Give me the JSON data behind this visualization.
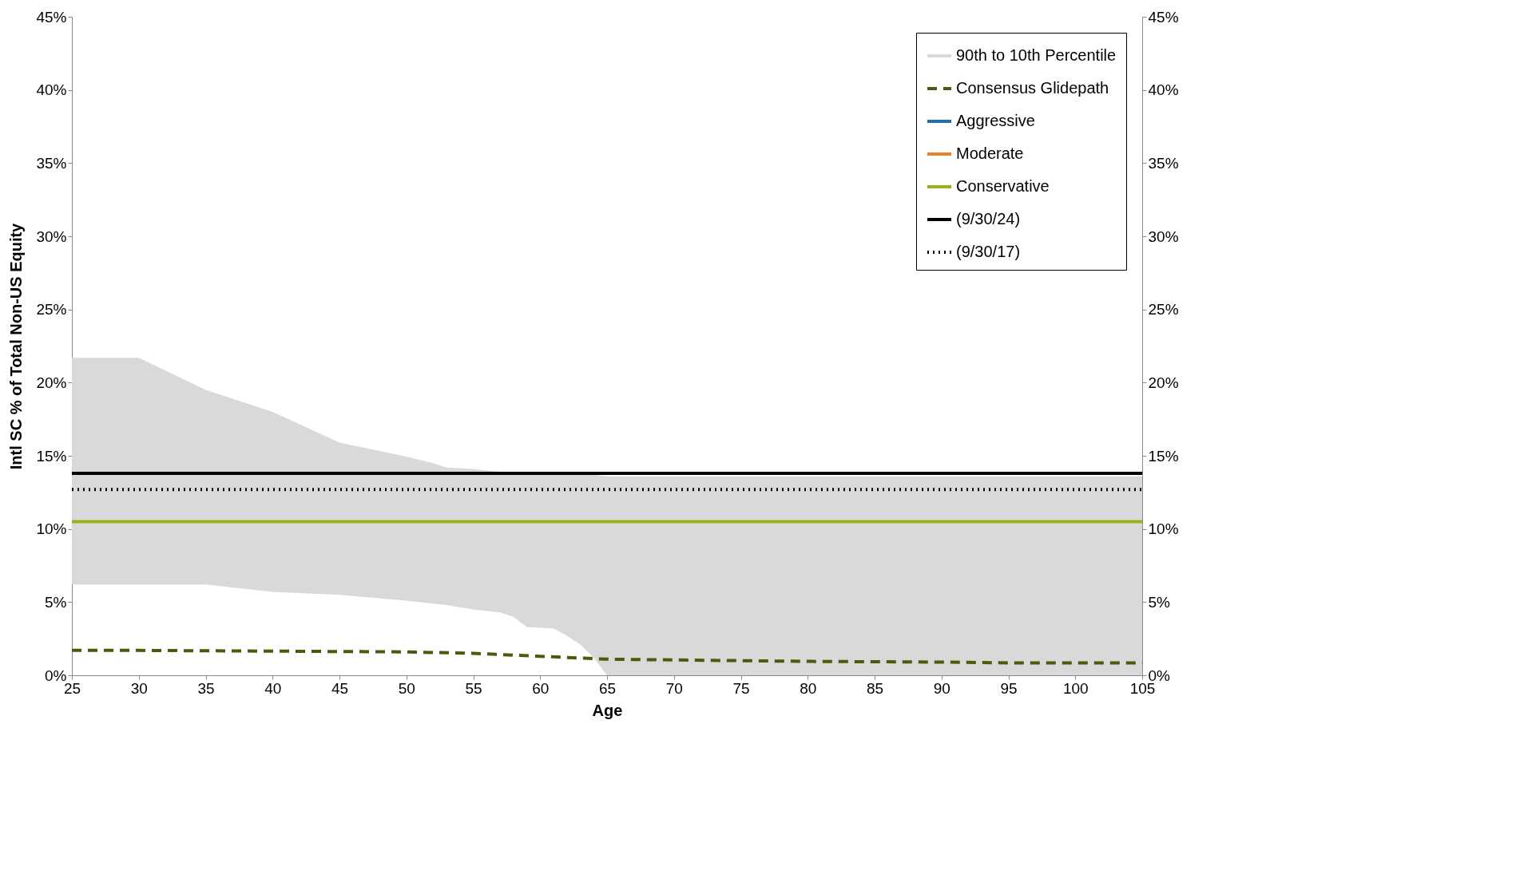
{
  "chart_data": {
    "type": "line",
    "xlabel": "Age",
    "ylabel": "Intl SC % of Total Non-US Equity",
    "xlim": [
      25,
      105
    ],
    "xticks": [
      25,
      30,
      35,
      40,
      45,
      50,
      55,
      60,
      65,
      70,
      75,
      80,
      85,
      90,
      95,
      100,
      105
    ],
    "ylim": [
      0,
      45
    ],
    "yticks": [
      {
        "value": 0,
        "label": "0%"
      },
      {
        "value": 5,
        "label": "5%"
      },
      {
        "value": 10,
        "label": "10%"
      },
      {
        "value": 15,
        "label": "15%"
      },
      {
        "value": 20,
        "label": "20%"
      },
      {
        "value": 25,
        "label": "25%"
      },
      {
        "value": 30,
        "label": "30%"
      },
      {
        "value": 35,
        "label": "35%"
      },
      {
        "value": 40,
        "label": "40%"
      },
      {
        "value": 45,
        "label": "45%"
      }
    ],
    "y2lim": [
      0,
      45
    ],
    "y2ticks": [
      {
        "value": 0,
        "label": "0%"
      },
      {
        "value": 5,
        "label": "5%"
      },
      {
        "value": 10,
        "label": "10%"
      },
      {
        "value": 15,
        "label": "15%"
      },
      {
        "value": 20,
        "label": "20%"
      },
      {
        "value": 25,
        "label": "25%"
      },
      {
        "value": 30,
        "label": "30%"
      },
      {
        "value": 35,
        "label": "35%"
      },
      {
        "value": 40,
        "label": "40%"
      },
      {
        "value": 45,
        "label": "45%"
      }
    ],
    "grid": false,
    "legend": "top right",
    "marker": "none",
    "series": [
      {
        "name": "90th to 10th Percentile",
        "type": "area",
        "color": "#d9d9d9",
        "x": [
          25,
          30,
          35,
          40,
          45,
          50,
          52,
          53,
          55,
          57,
          58,
          59,
          61,
          62,
          63,
          64,
          65,
          70,
          80,
          90,
          100,
          105
        ],
        "values": [
          null,
          null,
          null,
          null,
          null,
          null,
          null,
          null,
          null,
          null,
          null,
          null,
          null,
          null,
          null,
          null,
          null,
          null,
          null,
          null,
          null,
          null
        ],
        "upper": [
          21.7,
          21.7,
          19.5,
          18.0,
          15.9,
          14.95,
          14.5,
          14.2,
          14.1,
          13.9,
          13.8,
          13.7,
          13.7,
          13.7,
          13.7,
          13.7,
          13.6,
          13.6,
          13.6,
          13.6,
          13.6,
          13.6
        ],
        "lower": [
          6.2,
          6.2,
          6.2,
          5.7,
          5.5,
          5.1,
          4.9,
          4.8,
          4.5,
          4.3,
          4.0,
          3.3,
          3.2,
          2.7,
          2.1,
          1.2,
          0,
          0,
          0,
          0,
          0,
          0
        ]
      },
      {
        "name": "Consensus Glidepath",
        "color": "#4b5a0c",
        "line_style": "dashed",
        "x": [
          25,
          30,
          40,
          50,
          55,
          60,
          65,
          70,
          75,
          80,
          90,
          95,
          105
        ],
        "values": [
          1.7,
          1.7,
          1.65,
          1.6,
          1.5,
          1.3,
          1.1,
          1.05,
          1.0,
          0.95,
          0.9,
          0.85,
          0.85
        ]
      },
      {
        "name": "Aggressive",
        "color": "#1f6fa8",
        "line_style": "solid"
      },
      {
        "name": "Moderate",
        "color": "#e8822b",
        "line_style": "solid"
      },
      {
        "name": "Conservative",
        "color": "#9bb31a",
        "line_style": "solid",
        "x": [
          25,
          105
        ],
        "values": [
          10.5,
          10.5
        ]
      },
      {
        "name": "(9/30/24)",
        "color": "#000000",
        "line_style": "solid",
        "x": [
          25,
          105
        ],
        "values": [
          13.8,
          13.8
        ]
      },
      {
        "name": "(9/30/17)",
        "color": "#000000",
        "line_style": "dotted",
        "x": [
          25,
          105
        ],
        "values": [
          12.7,
          12.7
        ]
      }
    ]
  }
}
